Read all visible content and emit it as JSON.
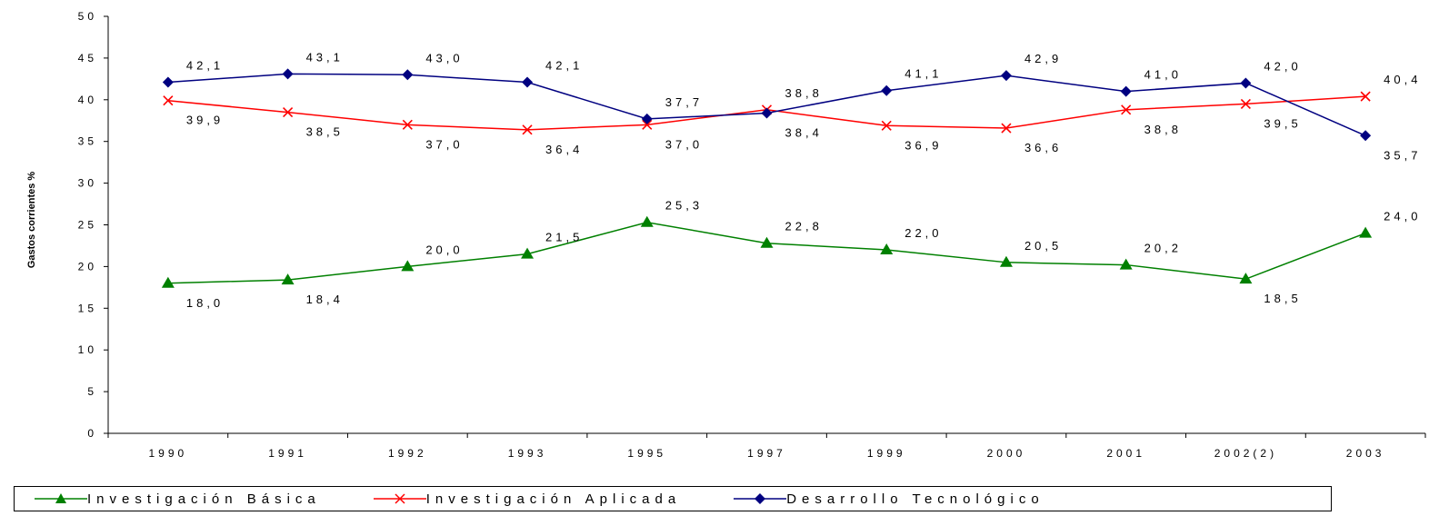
{
  "chart_data": {
    "type": "line",
    "ylabel": "Gastos corrientes %",
    "xlabel": "",
    "ylim": [
      0,
      50
    ],
    "yticks": [
      "0",
      "5",
      "10",
      "15",
      "20",
      "25",
      "30",
      "35",
      "40",
      "45",
      "50"
    ],
    "categories": [
      "1990",
      "1991",
      "1992",
      "1993",
      "1995",
      "1997",
      "1999",
      "2000",
      "2001",
      "2002(2)",
      "2003"
    ],
    "series": [
      {
        "name": "Investigación Básica",
        "color": "#008000",
        "marker": "triangle",
        "values": [
          18.0,
          18.4,
          20.0,
          21.5,
          25.3,
          22.8,
          22.0,
          20.5,
          20.2,
          18.5,
          24.0
        ],
        "labels": [
          "18,0",
          "18,4",
          "20,0",
          "21,5",
          "25,3",
          "22,8",
          "22,0",
          "20,5",
          "20,2",
          "18,5",
          "24,0"
        ]
      },
      {
        "name": "Investigación Aplicada",
        "color": "#ff0000",
        "marker": "x",
        "values": [
          39.9,
          38.5,
          37.0,
          36.4,
          37.0,
          38.8,
          36.9,
          36.6,
          38.8,
          39.5,
          40.4
        ],
        "labels": [
          "39,9",
          "38,5",
          "37,0",
          "36,4",
          "37,0",
          "38,8",
          "36,9",
          "36,6",
          "38,8",
          "39,5",
          "40,4"
        ]
      },
      {
        "name": "Desarrollo Tecnológico",
        "color": "#000080",
        "marker": "diamond",
        "values": [
          42.1,
          43.1,
          43.0,
          42.1,
          37.7,
          38.4,
          41.1,
          42.9,
          41.0,
          42.0,
          35.7
        ],
        "labels": [
          "42,1",
          "43,1",
          "43,0",
          "42,1",
          "37,7",
          "38,4",
          "41,1",
          "42,9",
          "41,0",
          "42,0",
          "35,7"
        ]
      }
    ],
    "grid": false,
    "legend": "bottom"
  }
}
